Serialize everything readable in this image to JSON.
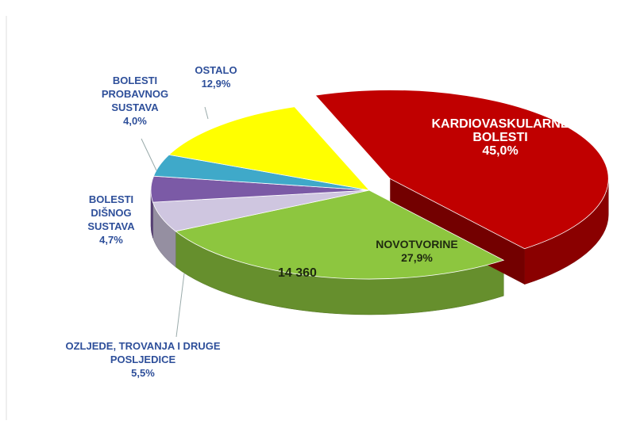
{
  "chart_data": {
    "type": "pie",
    "categories": [
      "KARDIOVASKULARNE BOLESTI",
      "NOVOTVORINE",
      "OZLJEDE, TROVANJA I DRUGE POSLJEDICE",
      "BOLESTI DIŠNOG SUSTAVA",
      "BOLESTI PROBAVNOG SUSTAVA",
      "OSTALO"
    ],
    "values": [
      45.0,
      27.9,
      5.5,
      4.7,
      4.0,
      12.9
    ],
    "value_labels": [
      "45,0%",
      "27,9%",
      "5,5%",
      "4,7%",
      "4,0%",
      "12,9%"
    ],
    "colors": [
      "#c00000",
      "#8dc63f",
      "#cfc6e0",
      "#7b5aa6",
      "#3fa9c9",
      "#ffff00"
    ],
    "annotation": "14 360"
  }
}
